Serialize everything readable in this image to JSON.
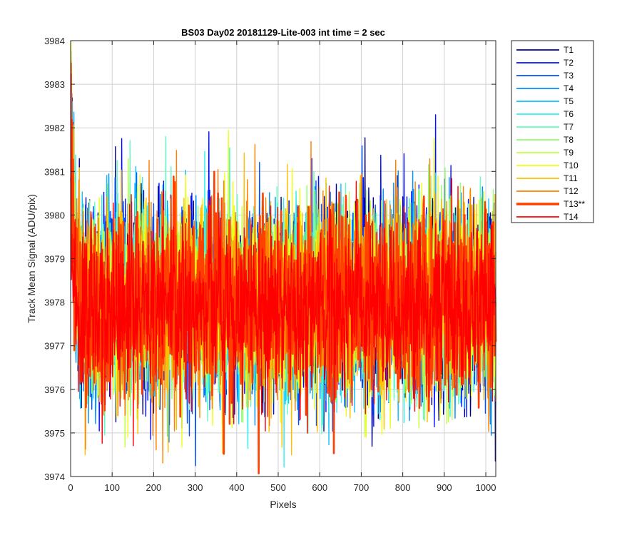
{
  "chart_data": {
    "type": "line",
    "title": "BS03 Day02 20181129-Lite-003 int time = 2 sec",
    "xlabel": "Pixels",
    "ylabel": "Track Mean Signal (ADU/pix)",
    "xlim": [
      0,
      1024
    ],
    "ylim": [
      3974,
      3984
    ],
    "xticks": [
      0,
      100,
      200,
      300,
      400,
      500,
      600,
      700,
      800,
      900,
      1000
    ],
    "yticks": [
      3974,
      3975,
      3976,
      3977,
      3978,
      3979,
      3980,
      3981,
      3982,
      3983,
      3984
    ],
    "grid": true,
    "legend_position": "outside-top-right",
    "n_points": 1024,
    "series": [
      {
        "name": "T1",
        "color": "#00008f",
        "mean": 3978.1,
        "spread": 1.15,
        "start": 3983.4
      },
      {
        "name": "T2",
        "color": "#0010ff",
        "mean": 3978.1,
        "spread": 1.15,
        "start": 3983.1
      },
      {
        "name": "T3",
        "color": "#0050ff",
        "mean": 3978.0,
        "spread": 1.1,
        "start": 3982.8
      },
      {
        "name": "T4",
        "color": "#0090ff",
        "mean": 3978.0,
        "spread": 1.1,
        "start": 3982.6
      },
      {
        "name": "T5",
        "color": "#10c0ff",
        "mean": 3978.0,
        "spread": 1.05,
        "start": 3982.4
      },
      {
        "name": "T6",
        "color": "#30f0ef",
        "mean": 3978.0,
        "spread": 1.05,
        "start": 3982.2
      },
      {
        "name": "T7",
        "color": "#60ffbf",
        "mean": 3978.0,
        "spread": 1.05,
        "start": 3982.0
      },
      {
        "name": "T8",
        "color": "#90ff70",
        "mean": 3978.0,
        "spread": 1.05,
        "start": 3981.8
      },
      {
        "name": "T9",
        "color": "#c0ff40",
        "mean": 3978.0,
        "spread": 1.05,
        "start": 3981.9
      },
      {
        "name": "T10",
        "color": "#f0ff10",
        "mean": 3978.0,
        "spread": 1.1,
        "start": 3982.9
      },
      {
        "name": "T11",
        "color": "#ffbf00",
        "mean": 3978.0,
        "spread": 1.1,
        "start": 3982.5
      },
      {
        "name": "T12",
        "color": "#ff7f00",
        "mean": 3978.0,
        "spread": 1.1,
        "start": 3981.8
      },
      {
        "name": "T13**",
        "color": "#ff4000",
        "mean": 3978.0,
        "spread": 1.05,
        "start": 3980.9,
        "bold": true
      },
      {
        "name": "T14",
        "color": "#ff0000",
        "mean": 3977.9,
        "spread": 1.05,
        "start": 3980.8
      }
    ]
  }
}
